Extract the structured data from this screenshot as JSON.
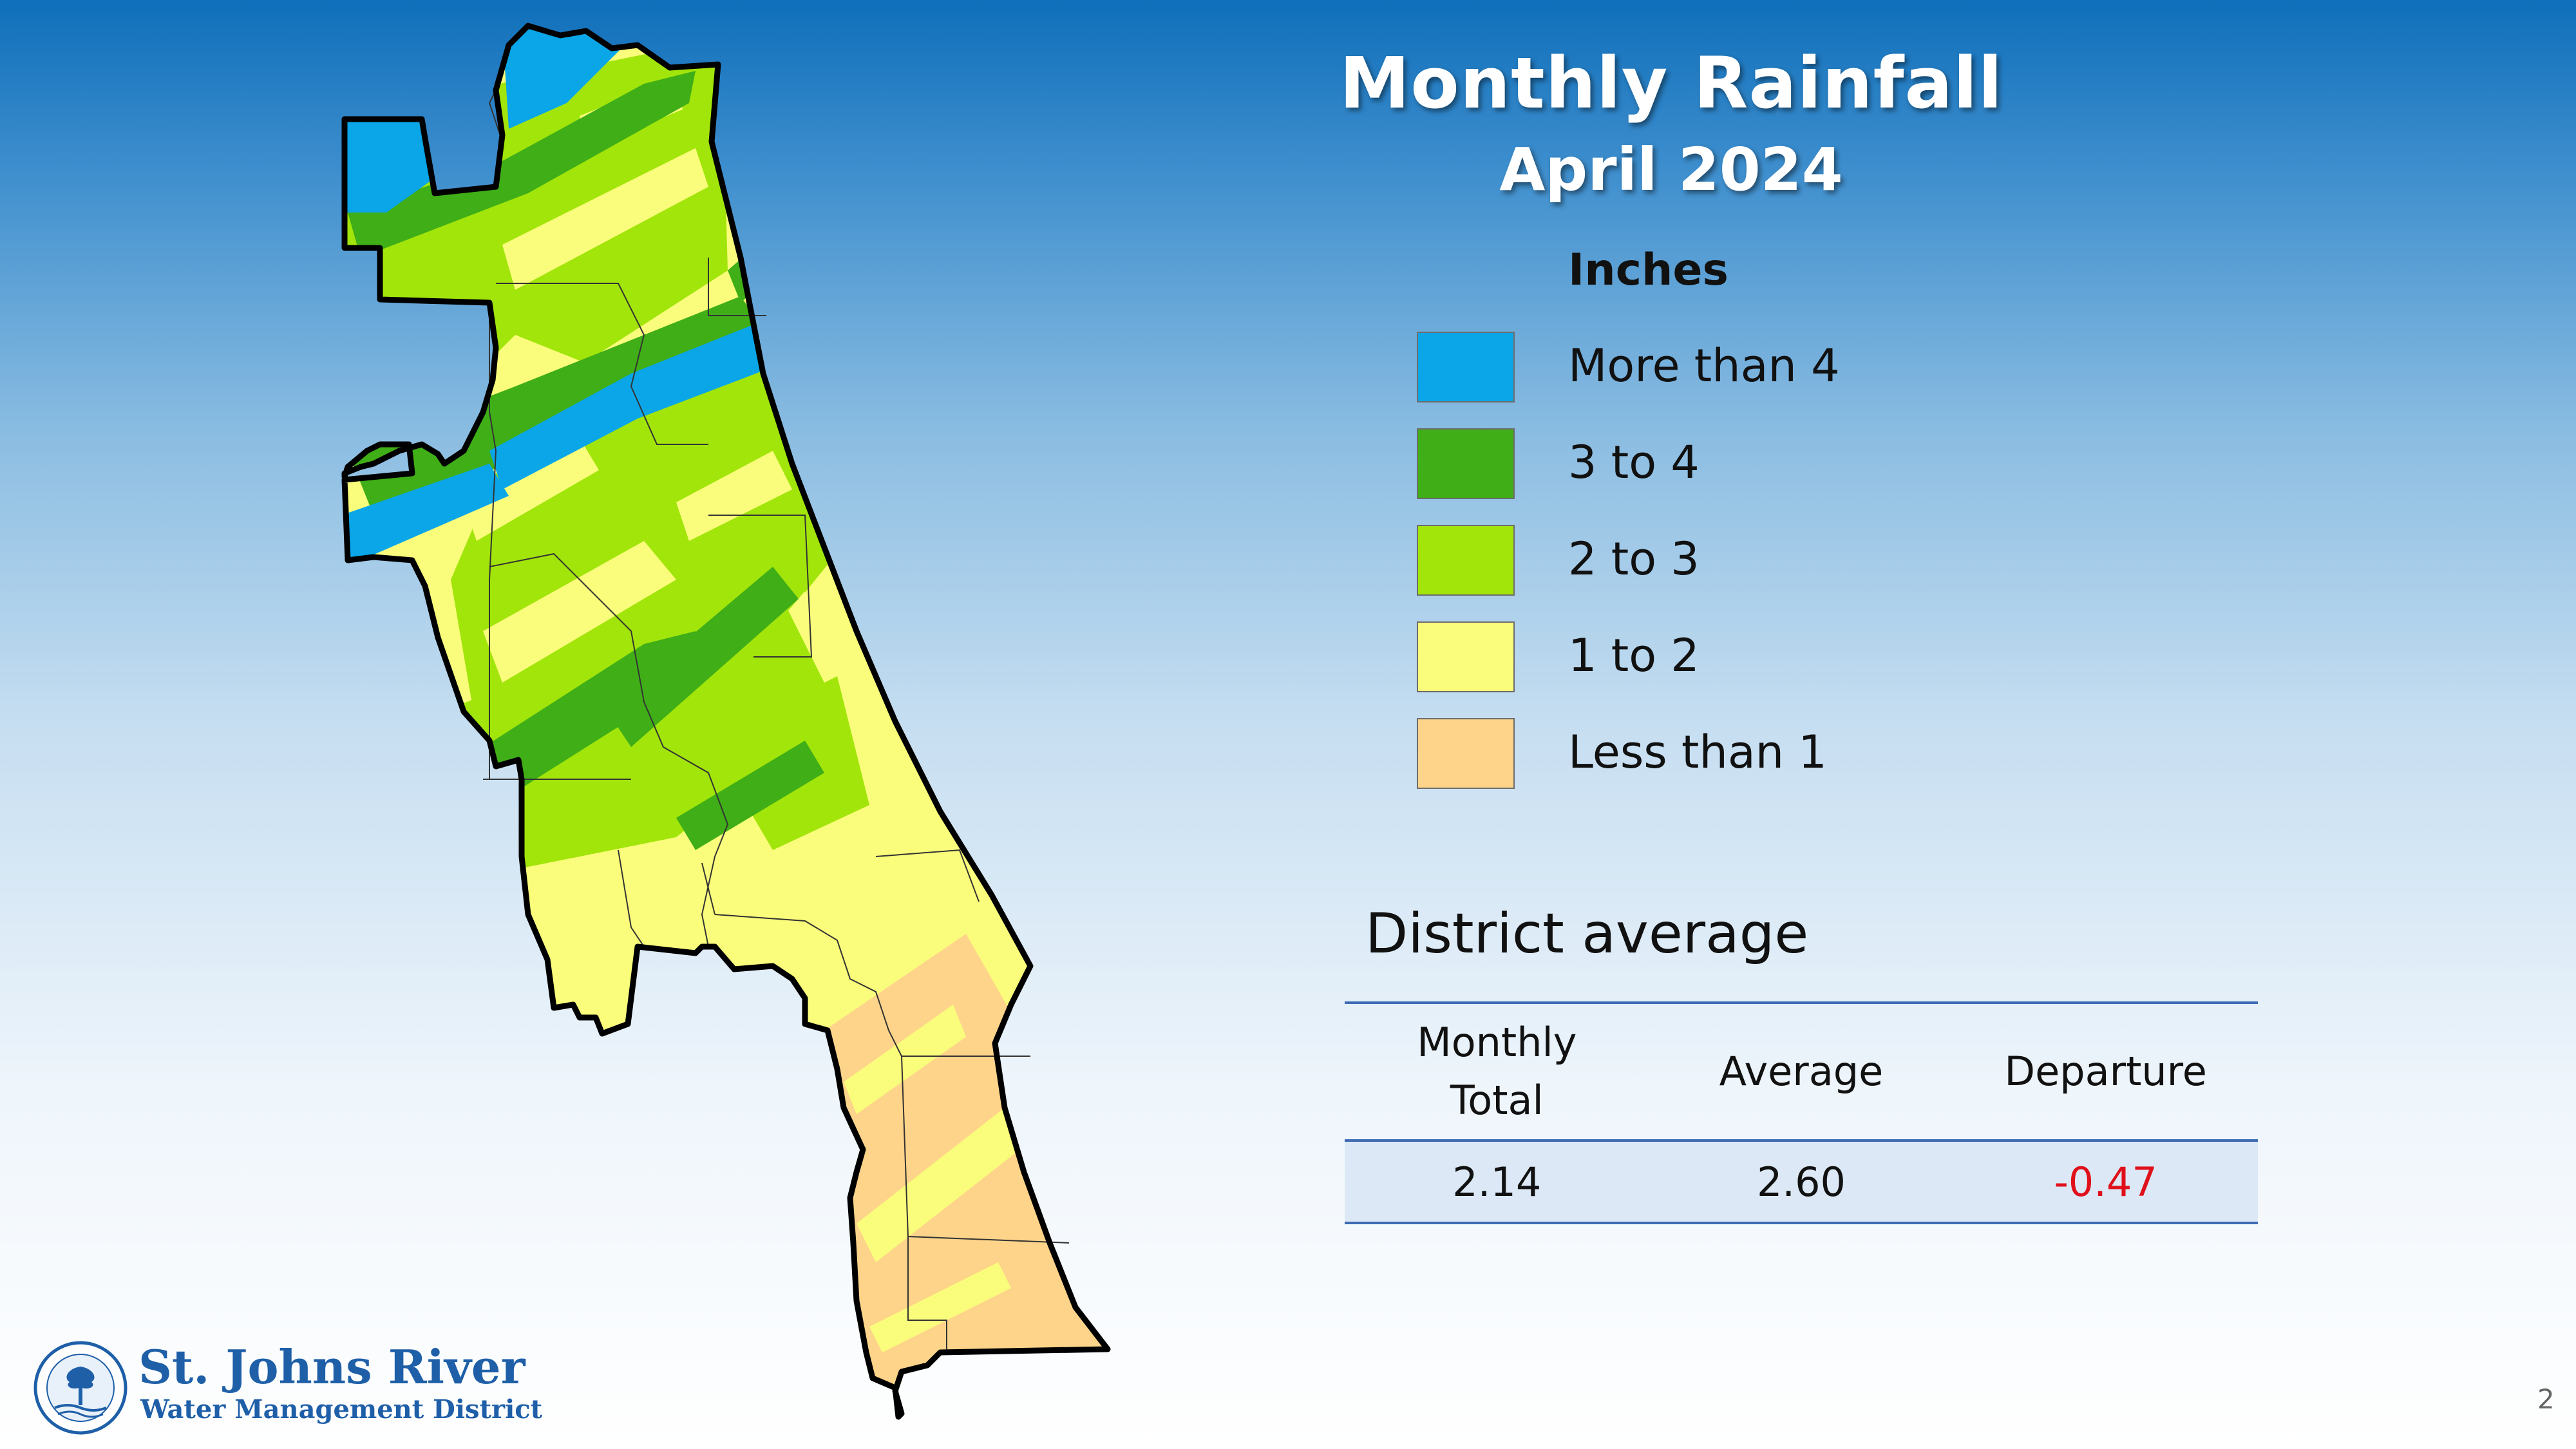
{
  "header": {
    "title": "Monthly Rainfall",
    "subtitle": "April 2024"
  },
  "legend": {
    "title": "Inches",
    "items": [
      {
        "label": "More than 4",
        "color": "#0aa6e8"
      },
      {
        "label": "3 to 4",
        "color": "#3fae17"
      },
      {
        "label": "2 to 3",
        "color": "#a2e50b"
      },
      {
        "label": "1 to 2",
        "color": "#fafd7b"
      },
      {
        "label": "Less than 1",
        "color": "#fdd48a"
      }
    ]
  },
  "district": {
    "heading": "District average",
    "columns": [
      "Monthly Total",
      "Average",
      "Departure"
    ],
    "row": [
      "2.14",
      "2.60",
      "-0.47"
    ],
    "departure_color": "#e0101b"
  },
  "branding": {
    "name": "St. Johns River",
    "subname": "Water Management District",
    "accent": "#1e5fa8"
  },
  "page_number": "2"
}
